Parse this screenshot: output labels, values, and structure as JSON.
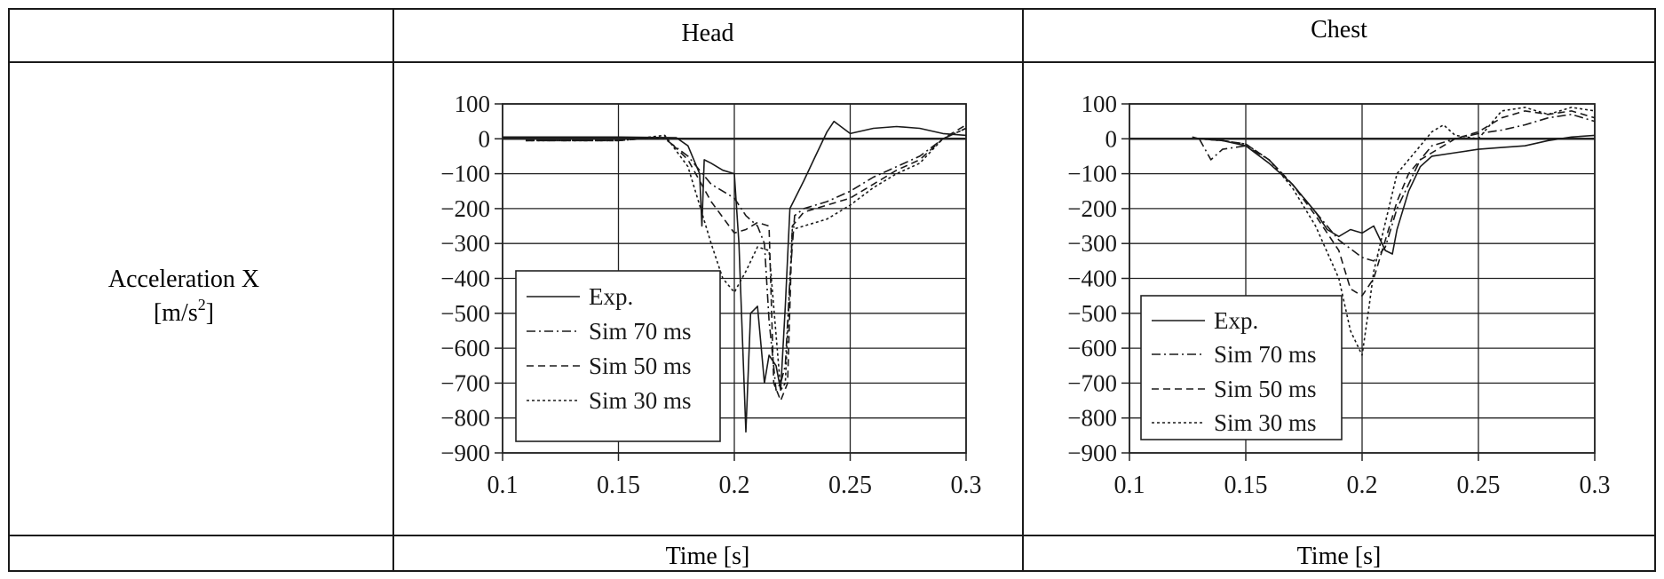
{
  "table": {
    "header": [
      "",
      "Head",
      "Chest"
    ],
    "row_label_line1": "Acceleration X",
    "row_label_line2_base": "[m/s",
    "row_label_line2_sup": "2",
    "row_label_line2_end": "]",
    "footer": [
      "",
      "Time [s]",
      "Time [s]"
    ]
  },
  "chart_data": [
    {
      "type": "line",
      "title": "Head",
      "xlabel": "Time [s]",
      "ylabel": "Acceleration X [m/s2]",
      "xlim": [
        0.1,
        0.3
      ],
      "ylim": [
        -900,
        100
      ],
      "xticks": [
        0.1,
        0.15,
        0.2,
        0.25,
        0.3
      ],
      "xtick_labels": [
        "0.1",
        "0.15",
        "0.2",
        "0.25",
        "0.3"
      ],
      "yticks": [
        100,
        0,
        -100,
        -200,
        -300,
        -400,
        -500,
        -600,
        -700,
        -800,
        -900
      ],
      "ytick_labels": [
        "100",
        "0",
        "−100",
        "−200",
        "−300",
        "−400",
        "−500",
        "−600",
        "−700",
        "−800",
        "−900"
      ],
      "grid": true,
      "legend_position": "lower-left",
      "series": [
        {
          "name": "Exp.",
          "dash": "",
          "x": [
            0.1,
            0.15,
            0.175,
            0.18,
            0.185,
            0.186,
            0.187,
            0.19,
            0.195,
            0.2,
            0.202,
            0.205,
            0.207,
            0.21,
            0.213,
            0.215,
            0.218,
            0.22,
            0.222,
            0.224,
            0.23,
            0.235,
            0.24,
            0.243,
            0.245,
            0.25,
            0.26,
            0.27,
            0.28,
            0.29,
            0.3
          ],
          "y": [
            5,
            5,
            3,
            -20,
            -100,
            -250,
            -60,
            -70,
            -90,
            -100,
            -300,
            -840,
            -500,
            -480,
            -700,
            -620,
            -650,
            -720,
            -480,
            -200,
            -120,
            -50,
            20,
            50,
            40,
            15,
            30,
            35,
            30,
            15,
            10
          ]
        },
        {
          "name": "Sim 70 ms",
          "dash": "10,4,2,4",
          "x": [
            0.11,
            0.15,
            0.16,
            0.17,
            0.18,
            0.19,
            0.2,
            0.205,
            0.21,
            0.213,
            0.215,
            0.218,
            0.22,
            0.222,
            0.224,
            0.226,
            0.23,
            0.24,
            0.25,
            0.26,
            0.27,
            0.28,
            0.29,
            0.3
          ],
          "y": [
            -5,
            -5,
            0,
            0,
            -50,
            -130,
            -170,
            -220,
            -250,
            -300,
            -520,
            -720,
            -700,
            -650,
            -400,
            -220,
            -200,
            -180,
            -150,
            -110,
            -80,
            -50,
            0,
            30
          ]
        },
        {
          "name": "Sim 50 ms",
          "dash": "8,5",
          "x": [
            0.11,
            0.15,
            0.17,
            0.18,
            0.19,
            0.2,
            0.205,
            0.21,
            0.215,
            0.217,
            0.22,
            0.223,
            0.225,
            0.23,
            0.24,
            0.25,
            0.26,
            0.27,
            0.28,
            0.29,
            0.3
          ],
          "y": [
            -5,
            -5,
            5,
            -60,
            -180,
            -270,
            -260,
            -240,
            -250,
            -700,
            -750,
            -700,
            -250,
            -210,
            -190,
            -170,
            -130,
            -90,
            -60,
            0,
            40
          ]
        },
        {
          "name": "Sim 30 ms",
          "dash": "3,3",
          "x": [
            0.11,
            0.15,
            0.17,
            0.18,
            0.19,
            0.195,
            0.2,
            0.205,
            0.21,
            0.215,
            0.22,
            0.222,
            0.225,
            0.23,
            0.24,
            0.25,
            0.26,
            0.27,
            0.28,
            0.29,
            0.3
          ],
          "y": [
            -5,
            -5,
            10,
            -80,
            -300,
            -400,
            -440,
            -380,
            -310,
            -320,
            -720,
            -700,
            -260,
            -250,
            -230,
            -190,
            -140,
            -100,
            -70,
            0,
            30
          ]
        }
      ]
    },
    {
      "type": "line",
      "title": "Chest",
      "xlabel": "Time [s]",
      "ylabel": "Acceleration X [m/s2]",
      "xlim": [
        0.1,
        0.3
      ],
      "ylim": [
        -900,
        100
      ],
      "xticks": [
        0.1,
        0.15,
        0.2,
        0.25,
        0.3
      ],
      "xtick_labels": [
        "0.1",
        "0.15",
        "0.2",
        "0.25",
        "0.3"
      ],
      "yticks": [
        100,
        0,
        -100,
        -200,
        -300,
        -400,
        -500,
        -600,
        -700,
        -800,
        -900
      ],
      "ytick_labels": [
        "100",
        "0",
        "−100",
        "−200",
        "−300",
        "−400",
        "−500",
        "−600",
        "−700",
        "−800",
        "−900"
      ],
      "grid": true,
      "legend_position": "lower-left",
      "series": [
        {
          "name": "Exp.",
          "dash": "",
          "x": [
            0.127,
            0.13,
            0.14,
            0.15,
            0.16,
            0.17,
            0.18,
            0.185,
            0.19,
            0.195,
            0.2,
            0.205,
            0.21,
            0.213,
            0.215,
            0.22,
            0.225,
            0.23,
            0.24,
            0.25,
            0.26,
            0.27,
            0.28,
            0.29,
            0.3
          ],
          "y": [
            5,
            0,
            -5,
            -20,
            -70,
            -130,
            -210,
            -260,
            -280,
            -260,
            -270,
            -250,
            -320,
            -330,
            -260,
            -150,
            -80,
            -50,
            -40,
            -30,
            -25,
            -20,
            -5,
            5,
            10
          ]
        },
        {
          "name": "Sim 70 ms",
          "dash": "10,4,2,4",
          "x": [
            0.13,
            0.135,
            0.14,
            0.15,
            0.16,
            0.17,
            0.18,
            0.19,
            0.2,
            0.205,
            0.21,
            0.215,
            0.22,
            0.225,
            0.23,
            0.24,
            0.25,
            0.26,
            0.27,
            0.28,
            0.29,
            0.3
          ],
          "y": [
            0,
            -60,
            -30,
            -20,
            -60,
            -130,
            -210,
            -290,
            -340,
            -350,
            -310,
            -200,
            -130,
            -60,
            -20,
            0,
            15,
            25,
            40,
            60,
            70,
            50
          ]
        },
        {
          "name": "Sim 50 ms",
          "dash": "8,5",
          "x": [
            0.13,
            0.14,
            0.15,
            0.16,
            0.17,
            0.18,
            0.19,
            0.195,
            0.2,
            0.205,
            0.21,
            0.215,
            0.22,
            0.225,
            0.23,
            0.24,
            0.25,
            0.26,
            0.27,
            0.28,
            0.29,
            0.3
          ],
          "y": [
            0,
            -5,
            -15,
            -60,
            -130,
            -220,
            -320,
            -430,
            -450,
            -400,
            -290,
            -180,
            -100,
            -60,
            -40,
            0,
            20,
            60,
            80,
            70,
            80,
            60
          ]
        },
        {
          "name": "Sim 30 ms",
          "dash": "3,3",
          "x": [
            0.13,
            0.14,
            0.15,
            0.16,
            0.17,
            0.18,
            0.19,
            0.195,
            0.2,
            0.203,
            0.205,
            0.21,
            0.215,
            0.22,
            0.225,
            0.23,
            0.235,
            0.24,
            0.25,
            0.26,
            0.27,
            0.28,
            0.29,
            0.3
          ],
          "y": [
            0,
            -5,
            -15,
            -60,
            -140,
            -250,
            -400,
            -550,
            -620,
            -480,
            -380,
            -240,
            -100,
            -60,
            -20,
            20,
            40,
            10,
            0,
            80,
            90,
            70,
            90,
            80
          ]
        }
      ]
    }
  ]
}
